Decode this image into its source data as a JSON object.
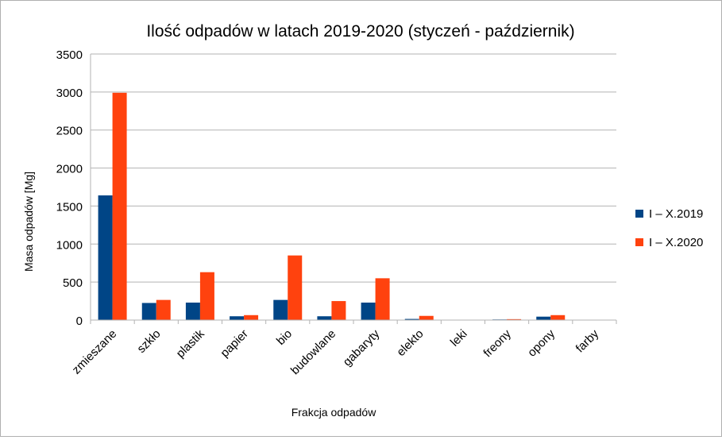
{
  "chart_data": {
    "type": "bar",
    "title": "Ilość odpadów w latach 2019-2020 (styczeń - październik)",
    "xlabel": "Frakcja odpadów",
    "ylabel": "Masa odpadów [Mg]",
    "ylim": [
      0,
      3500
    ],
    "yticks": [
      "0",
      "500",
      "1000",
      "1500",
      "2000",
      "2500",
      "3000",
      "3500"
    ],
    "grid": true,
    "legend_position": "right",
    "categories": [
      "zmieszane",
      "szkło",
      "plastik",
      "papier",
      "bio",
      "budowlane",
      "gabaryty",
      "elekto",
      "leki",
      "freony",
      "opony",
      "farby"
    ],
    "series": [
      {
        "name": "I – X.2019",
        "color": "#004586",
        "values": [
          1640,
          225,
          230,
          50,
          265,
          50,
          230,
          15,
          2,
          8,
          45,
          5
        ]
      },
      {
        "name": "I – X.2020",
        "color": "#ff420e",
        "values": [
          2990,
          265,
          630,
          65,
          850,
          250,
          550,
          55,
          2,
          12,
          65,
          5
        ]
      }
    ]
  }
}
